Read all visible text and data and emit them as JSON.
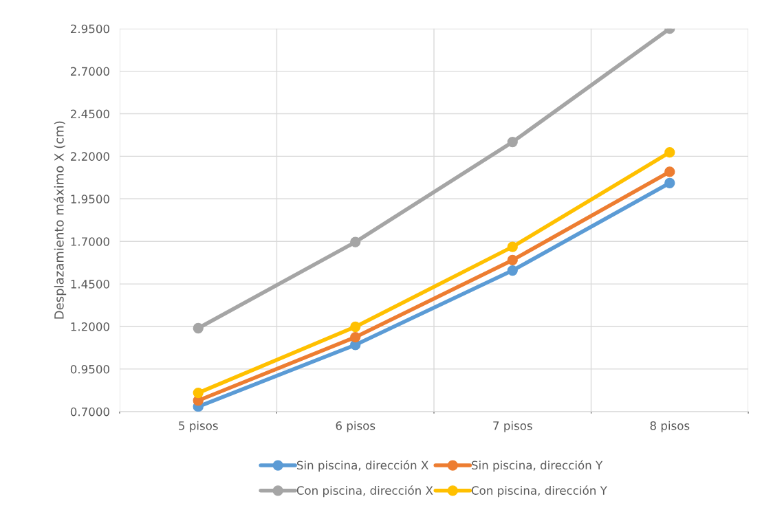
{
  "chart_data": {
    "type": "line",
    "ylabel": "Desplazamiento máximo X (cm)",
    "categories": [
      "5 pisos",
      "6 pisos",
      "7 pisos",
      "8 pisos"
    ],
    "series": [
      {
        "name": "Sin piscina, dirección X",
        "color": "#5b9bd5",
        "values": [
          0.729,
          1.092,
          1.529,
          2.043
        ]
      },
      {
        "name": "Sin piscina, dirección Y",
        "color": "#ed7d31",
        "values": [
          0.765,
          1.137,
          1.59,
          2.109
        ]
      },
      {
        "name": "Con piscina, dirección X",
        "color": "#a5a5a5",
        "values": [
          1.19,
          1.696,
          2.284,
          2.95
        ]
      },
      {
        "name": "Con piscina, dirección Y",
        "color": "#ffc000",
        "values": [
          0.81,
          1.198,
          1.668,
          2.223
        ]
      }
    ],
    "ylim": [
      0.7,
      2.95
    ],
    "yticks": [
      {
        "value": 0.7,
        "label": "0.7000"
      },
      {
        "value": 0.95,
        "label": "0.9500"
      },
      {
        "value": 1.2,
        "label": "1.2000"
      },
      {
        "value": 1.45,
        "label": "1.4500"
      },
      {
        "value": 1.7,
        "label": "1.7000"
      },
      {
        "value": 1.95,
        "label": "1.9500"
      },
      {
        "value": 2.2,
        "label": "2.2000"
      },
      {
        "value": 2.45,
        "label": "2.4500"
      },
      {
        "value": 2.7,
        "label": "2.7000"
      },
      {
        "value": 2.95,
        "label": "2.9500"
      }
    ],
    "grid": true,
    "legend": "bottom",
    "marker": "circle",
    "line_style": "solid"
  }
}
